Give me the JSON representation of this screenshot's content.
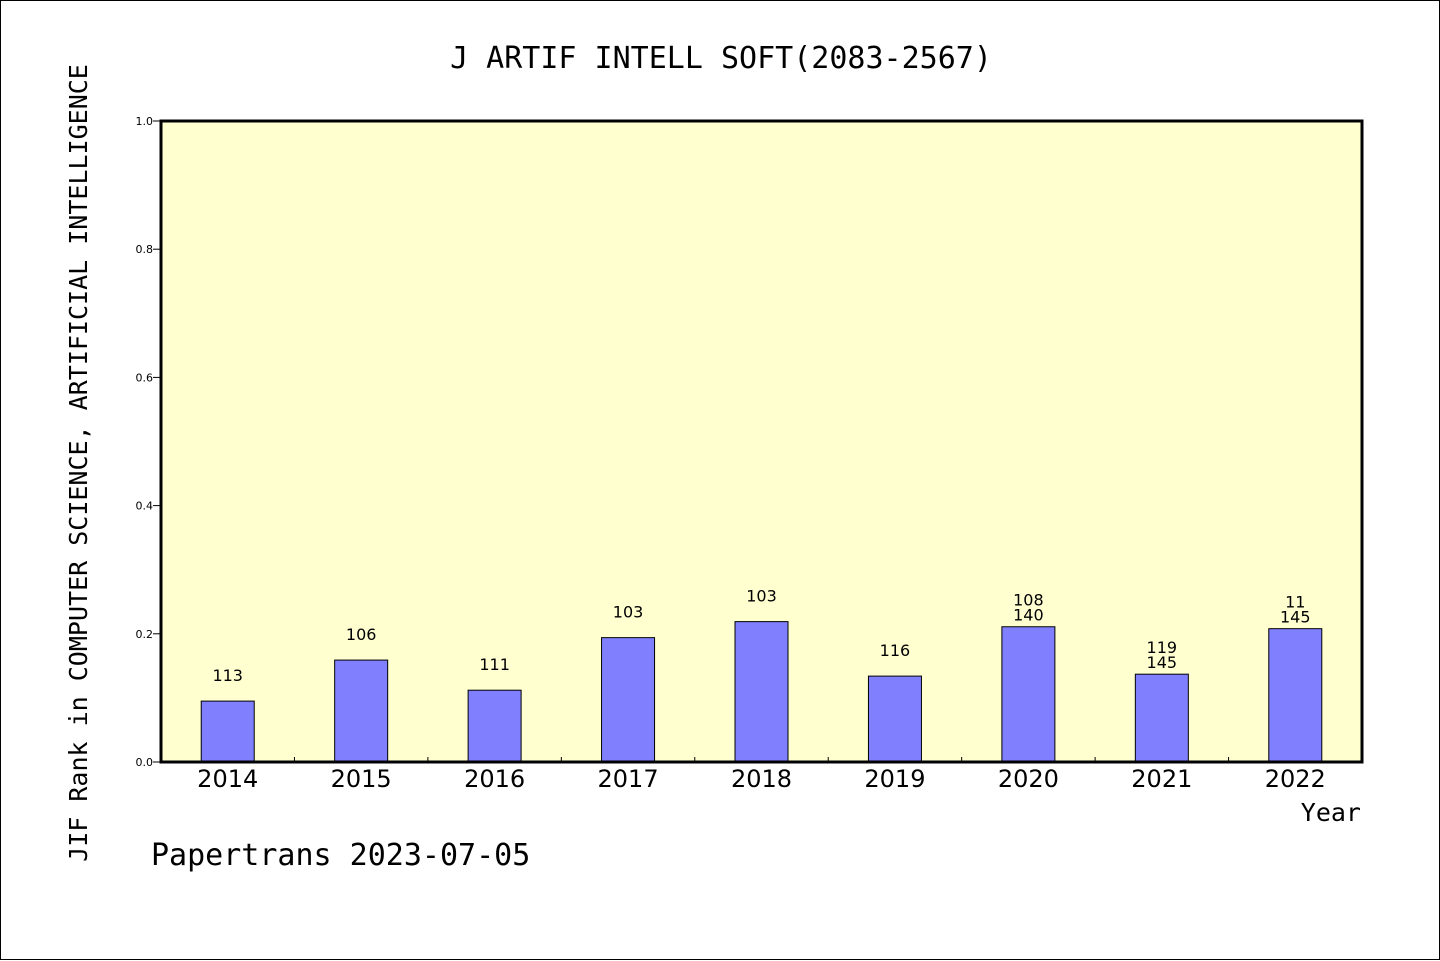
{
  "chart_data": {
    "type": "bar",
    "title": "J ARTIF INTELL SOFT(2083-2567)",
    "xlabel": "Year",
    "ylabel": "JIF Rank in COMPUTER SCIENCE, ARTIFICIAL INTELLIGENCE",
    "ylim": [
      0,
      1.0
    ],
    "yticks": [
      "0.0",
      "0.2",
      "0.4",
      "0.6",
      "0.8",
      "1.0"
    ],
    "categories": [
      "2014",
      "2015",
      "2016",
      "2017",
      "2018",
      "2019",
      "2020",
      "2021",
      "2022"
    ],
    "values": [
      0.095,
      0.159,
      0.112,
      0.194,
      0.219,
      0.134,
      0.211,
      0.137,
      0.208
    ],
    "labels": [
      [
        "113"
      ],
      [
        "106"
      ],
      [
        "111"
      ],
      [
        "103"
      ],
      [
        "103"
      ],
      [
        "116"
      ],
      [
        "108",
        "140"
      ],
      [
        "119",
        "145"
      ],
      [
        "11",
        "145"
      ]
    ],
    "grid": false,
    "legend": "none",
    "colors": {
      "bar": "#8080ff",
      "plot_background": "#ffffd0"
    }
  },
  "footer": {
    "credit": "Papertrans 2023-07-05"
  }
}
